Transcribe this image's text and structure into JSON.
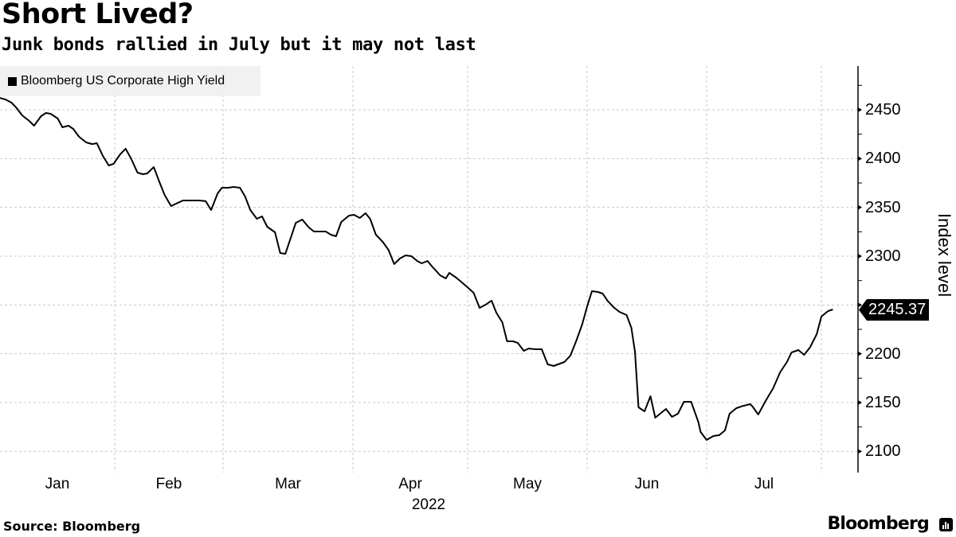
{
  "header": {
    "title": "Short Lived?",
    "subtitle": "Junk bonds rallied in July but it may not last"
  },
  "legend": {
    "items": [
      {
        "label": "Bloomberg US Corporate High Yield",
        "color": "#000000"
      }
    ]
  },
  "footer": {
    "source": "Source: Bloomberg",
    "brand": "Bloomberg"
  },
  "axes": {
    "ylabel": "Index level",
    "yticks": [
      "2450",
      "2400",
      "2350",
      "2300",
      "2250",
      "2200",
      "2150",
      "2100"
    ],
    "xticks": [
      "Jan",
      "Feb",
      "Mar",
      "Apr",
      "May",
      "Jun",
      "Jul"
    ],
    "xyear": "2022"
  },
  "last_value_label": "2245.37",
  "chart_data": {
    "type": "line",
    "title": "Short Lived?",
    "subtitle": "Junk bonds rallied in July but it may not last",
    "xlabel": "2022",
    "ylabel": "Index level",
    "ylim": [
      2080,
      2495
    ],
    "yticks": [
      2100,
      2150,
      2200,
      2250,
      2300,
      2350,
      2400,
      2450
    ],
    "xticks": [
      "Jan",
      "Feb",
      "Mar",
      "Apr",
      "May",
      "Jun",
      "Jul"
    ],
    "grid": true,
    "legend_position": "top-left",
    "x_unit": "months since Jan 1 2022 (0=Jan 1, 7=Aug 1)",
    "series": [
      {
        "name": "Bloomberg US Corporate High Yield",
        "color": "#000000",
        "last_value": 2245.37,
        "x": [
          0.03,
          0.08,
          0.13,
          0.17,
          0.22,
          0.28,
          0.32,
          0.38,
          0.42,
          0.46,
          0.52,
          0.56,
          0.61,
          0.65,
          0.7,
          0.76,
          0.81,
          0.85,
          0.9,
          0.95,
          0.99,
          1.05,
          1.1,
          1.15,
          1.21,
          1.26,
          1.3,
          1.36,
          1.41,
          1.46,
          1.52,
          1.63,
          1.68,
          1.78,
          1.84,
          1.89,
          1.95,
          1.99,
          2.04,
          2.08,
          2.13,
          2.17,
          2.21,
          2.26,
          2.3,
          2.34,
          2.4,
          2.44,
          2.48,
          2.56,
          2.61,
          2.66,
          2.7,
          2.79,
          2.83,
          2.87,
          2.91,
          2.97,
          3.01,
          3.06,
          3.11,
          3.15,
          3.2,
          3.26,
          3.31,
          3.36,
          3.41,
          3.46,
          3.51,
          3.56,
          3.6,
          3.65,
          3.69,
          3.76,
          3.81,
          3.84,
          3.9,
          3.95,
          3.99,
          4.05,
          4.1,
          4.15,
          4.2,
          4.24,
          4.29,
          4.33,
          4.38,
          4.42,
          4.47,
          4.51,
          4.57,
          4.62,
          4.67,
          4.72,
          4.81,
          4.86,
          4.91,
          4.96,
          5.0,
          5.04,
          5.09,
          5.13,
          5.17,
          5.22,
          5.27,
          5.33,
          5.37,
          5.4,
          5.43,
          5.48,
          5.53,
          5.57,
          5.66,
          5.71,
          5.76,
          5.81,
          5.87,
          5.93,
          5.95,
          6.0,
          6.06,
          6.11,
          6.16,
          6.2,
          6.26,
          6.32,
          6.38,
          6.4,
          6.45,
          6.51,
          6.58,
          6.64,
          6.7,
          6.74,
          6.8,
          6.85,
          6.9,
          6.96,
          7.0,
          7.06,
          7.1
        ],
        "values": [
          2462.2,
          2460.6,
          2457.3,
          2452.4,
          2444.3,
          2438.6,
          2433.7,
          2443.5,
          2446.7,
          2445.9,
          2441.0,
          2432.1,
          2433.7,
          2430.4,
          2422.3,
          2416.6,
          2414.9,
          2415.8,
          2402.7,
          2392.9,
          2394.6,
          2404.3,
          2410.1,
          2400.3,
          2385.6,
          2384.0,
          2384.8,
          2391.3,
          2376.6,
          2362.8,
          2351.4,
          2357.1,
          2357.1,
          2357.1,
          2356.3,
          2347.3,
          2364.4,
          2370.1,
          2370.1,
          2370.9,
          2370.1,
          2361.1,
          2347.3,
          2338.3,
          2340.8,
          2330.2,
          2324.5,
          2303.3,
          2302.4,
          2334.2,
          2337.5,
          2329.4,
          2325.3,
          2325.3,
          2322.0,
          2320.4,
          2335.0,
          2341.6,
          2342.4,
          2339.1,
          2344.0,
          2338.3,
          2322.0,
          2314.7,
          2306.5,
          2291.9,
          2297.6,
          2300.8,
          2300.0,
          2295.1,
          2292.7,
          2295.1,
          2289.4,
          2280.4,
          2277.2,
          2282.9,
          2278.0,
          2273.1,
          2269.0,
          2262.5,
          2247.0,
          2250.3,
          2254.4,
          2242.1,
          2232.3,
          2212.8,
          2212.8,
          2211.1,
          2203.0,
          2205.4,
          2204.6,
          2204.6,
          2189.1,
          2187.5,
          2191.6,
          2198.1,
          2213.6,
          2230.7,
          2248.6,
          2264.1,
          2263.3,
          2261.7,
          2254.4,
          2247.8,
          2242.9,
          2239.7,
          2226.6,
          2202.2,
          2145.1,
          2141.0,
          2156.5,
          2134.5,
          2143.5,
          2135.3,
          2138.6,
          2150.8,
          2150.8,
          2130.4,
          2119.8,
          2111.7,
          2115.8,
          2116.6,
          2121.5,
          2138.6,
          2144.3,
          2146.7,
          2148.4,
          2145.9,
          2137.8,
          2150.8,
          2164.7,
          2181.0,
          2191.6,
          2201.4,
          2203.8,
          2198.9,
          2206.3,
          2220.1,
          2238.1,
          2243.8,
          2245.4
        ]
      }
    ]
  }
}
